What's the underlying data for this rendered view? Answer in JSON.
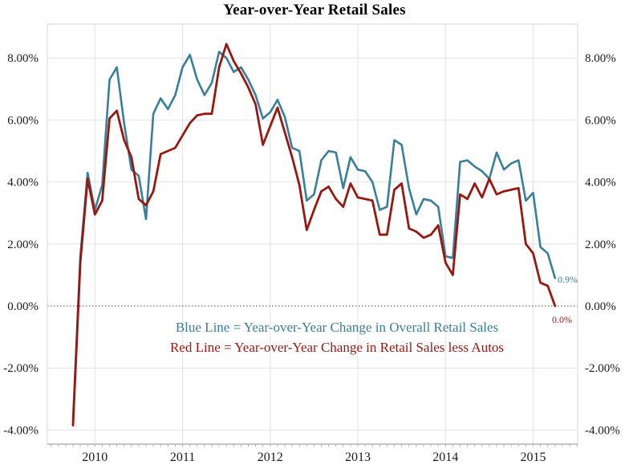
{
  "title": "Year-over-Year Retail Sales",
  "legend": [
    {
      "text": "Blue Line = Year-over-Year Change in Overall Retail Sales"
    },
    {
      "text": "Red Line = Year-over-Year Change in Retail Sales less Autos"
    }
  ],
  "end_labels": [
    {
      "series": "overall",
      "text": "0.9%"
    },
    {
      "series": "less-autos",
      "text": "0.0%"
    }
  ],
  "colors": {
    "overall_line": "#377f9c",
    "less_autos_line": "#9a170f",
    "grid": "#e2e2e2",
    "border": "#d5d5d5",
    "axis": "#a5a5a5",
    "tick": "#b5b5b5",
    "zero_line": "#444444",
    "label_text": "#1a1a1a"
  },
  "chart_data": {
    "type": "line",
    "title": "Year-over-Year Retail Sales",
    "xlabel": "",
    "ylabel": "",
    "grid": true,
    "legend_position": "center-below-zero",
    "ylim": [
      -4.6,
      8.9
    ],
    "y_axis": {
      "ticks": [
        8,
        6,
        4,
        2,
        0,
        -2,
        -4
      ],
      "labels": [
        "8.00%",
        "6.00%",
        "4.00%",
        "2.00%",
        "0.00%",
        "-2.00%",
        "-4.00%"
      ],
      "shown_on": "both-sides",
      "zero_line_style": "dotted"
    },
    "x_axis": {
      "year_labels": [
        "2010",
        "2011",
        "2012",
        "2013",
        "2014",
        "2015"
      ],
      "minor_ticks": "monthly"
    },
    "x": [
      "2009-10",
      "2009-11",
      "2009-12",
      "2010-01",
      "2010-02",
      "2010-03",
      "2010-04",
      "2010-05",
      "2010-06",
      "2010-07",
      "2010-08",
      "2010-09",
      "2010-10",
      "2010-11",
      "2010-12",
      "2011-01",
      "2011-02",
      "2011-03",
      "2011-04",
      "2011-05",
      "2011-06",
      "2011-07",
      "2011-08",
      "2011-09",
      "2011-10",
      "2011-11",
      "2011-12",
      "2012-01",
      "2012-02",
      "2012-03",
      "2012-04",
      "2012-05",
      "2012-06",
      "2012-07",
      "2012-08",
      "2012-09",
      "2012-10",
      "2012-11",
      "2012-12",
      "2013-01",
      "2013-02",
      "2013-03",
      "2013-04",
      "2013-05",
      "2013-06",
      "2013-07",
      "2013-08",
      "2013-09",
      "2013-10",
      "2013-11",
      "2013-12",
      "2014-01",
      "2014-02",
      "2014-03",
      "2014-04",
      "2014-05",
      "2014-06",
      "2014-07",
      "2014-08",
      "2014-09",
      "2014-10",
      "2014-11",
      "2014-12",
      "2015-01",
      "2015-02",
      "2015-03",
      "2015-04"
    ],
    "series": [
      {
        "name": "Year-over-Year Change in Overall Retail Sales",
        "color": "#377f9c",
        "values": [
          -3.7,
          1.6,
          4.3,
          3.1,
          3.9,
          7.3,
          7.7,
          5.9,
          4.4,
          4.2,
          2.8,
          6.2,
          6.7,
          6.35,
          6.8,
          7.7,
          8.1,
          7.3,
          6.8,
          7.2,
          8.2,
          8.0,
          7.55,
          7.7,
          7.3,
          6.8,
          6.05,
          6.25,
          6.65,
          6.1,
          5.1,
          5.0,
          3.4,
          3.6,
          4.7,
          5.0,
          4.95,
          3.8,
          4.8,
          4.4,
          4.35,
          4.0,
          3.1,
          3.2,
          5.35,
          5.2,
          3.8,
          2.95,
          3.45,
          3.4,
          3.2,
          1.6,
          1.55,
          4.65,
          4.7,
          4.5,
          4.35,
          4.1,
          4.95,
          4.4,
          4.6,
          4.7,
          3.4,
          3.65,
          1.9,
          1.7,
          0.9
        ]
      },
      {
        "name": "Year-over-Year Change in Retail Sales less Autos",
        "color": "#9a170f",
        "values": [
          -3.85,
          1.4,
          4.1,
          2.95,
          3.4,
          6.05,
          6.3,
          5.35,
          4.8,
          3.45,
          3.25,
          3.7,
          4.9,
          5.0,
          5.1,
          5.5,
          5.9,
          6.15,
          6.2,
          6.2,
          7.7,
          8.45,
          7.9,
          7.5,
          7.05,
          6.5,
          5.2,
          5.8,
          6.4,
          5.6,
          4.8,
          3.9,
          2.45,
          3.1,
          3.7,
          3.85,
          3.45,
          3.2,
          3.95,
          3.5,
          3.45,
          3.4,
          2.3,
          2.3,
          3.75,
          3.95,
          2.5,
          2.4,
          2.2,
          2.3,
          2.6,
          1.4,
          1.0,
          3.6,
          3.45,
          3.95,
          3.5,
          4.1,
          3.6,
          3.7,
          3.75,
          3.8,
          2.0,
          1.7,
          0.75,
          0.65,
          0.0
        ]
      }
    ],
    "last_point_labels": [
      {
        "series": "Overall Retail Sales",
        "value_label": "0.9%"
      },
      {
        "series": "Retail Sales less Autos",
        "value_label": "0.0%"
      }
    ]
  }
}
